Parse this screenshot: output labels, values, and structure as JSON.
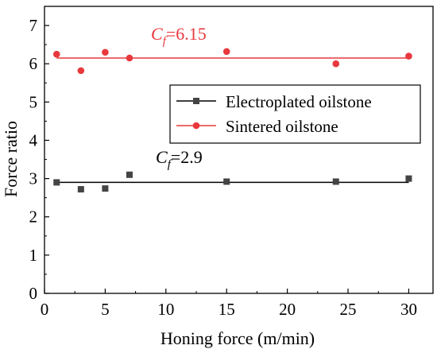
{
  "chart_data": {
    "type": "scatter",
    "xlabel": "Honing force (m/min)",
    "ylabel": "Force ratio",
    "xlim": [
      0,
      32
    ],
    "ylim": [
      0,
      7.5
    ],
    "xticks": [
      0,
      5,
      10,
      15,
      20,
      25,
      30
    ],
    "yticks": [
      0,
      1,
      2,
      3,
      4,
      5,
      6,
      7
    ],
    "legend_position": "right",
    "series": [
      {
        "name": "Electroplated oilstone",
        "marker": "square",
        "color": "#444444",
        "x": [
          1,
          3,
          5,
          7,
          15,
          24,
          30
        ],
        "y": [
          2.9,
          2.72,
          2.74,
          3.1,
          2.92,
          2.92,
          3.0
        ],
        "fit": {
          "value": 2.9,
          "label_prefix": "C",
          "label_sub": "f",
          "label_value": "=2.9",
          "line_color": "#000000",
          "label_color": "#000000"
        }
      },
      {
        "name": "Sintered oilstone",
        "marker": "circle",
        "color": "#e8383d",
        "x": [
          1,
          3,
          5,
          7,
          15,
          24,
          30
        ],
        "y": [
          6.25,
          5.82,
          6.3,
          6.15,
          6.32,
          6.0,
          6.2
        ],
        "fit": {
          "value": 6.15,
          "label_prefix": "C",
          "label_sub": "f",
          "label_value": "=6.15",
          "line_color": "#e8383d",
          "label_color": "#e8383d"
        }
      }
    ]
  }
}
